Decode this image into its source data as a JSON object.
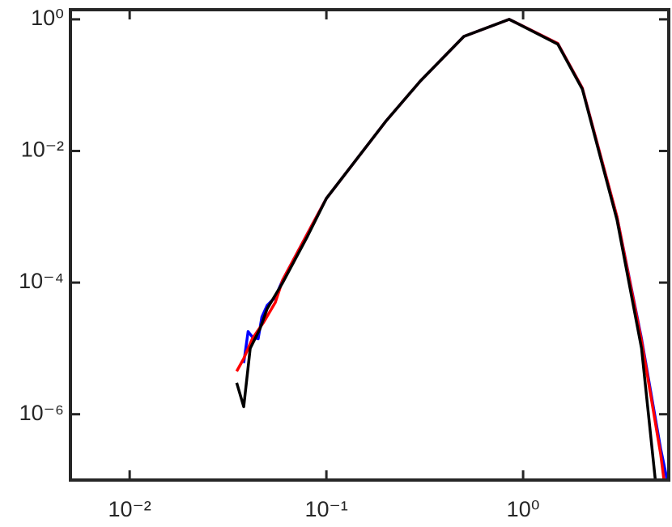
{
  "chart_data": {
    "type": "line",
    "log_x": true,
    "log_y": true,
    "xlim": [
      0.005,
      5.5
    ],
    "ylim": [
      1e-07,
      1.4
    ],
    "xticks": [
      {
        "value": 0.01,
        "label": "10⁻²"
      },
      {
        "value": 0.1,
        "label": "10⁻¹"
      },
      {
        "value": 1,
        "label": "10⁰"
      }
    ],
    "yticks": [
      {
        "value": 1e-06,
        "label": "10⁻⁶"
      },
      {
        "value": 0.0001,
        "label": "10⁻⁴"
      },
      {
        "value": 0.01,
        "label": "10⁻²"
      },
      {
        "value": 1,
        "label": "10⁰"
      }
    ],
    "series": [
      {
        "color": "#0000ff",
        "x": [
          0.038,
          0.04,
          0.042,
          0.045,
          0.047,
          0.05,
          0.055,
          0.06,
          0.08,
          0.1,
          0.2,
          0.3,
          0.5,
          0.85,
          1.5,
          2,
          3,
          4,
          5,
          5.4
        ],
        "values": [
          6e-06,
          1.8e-05,
          1.5e-05,
          1.4e-05,
          3e-05,
          4.5e-05,
          6e-05,
          0.00011,
          0.00055,
          0.0019,
          0.028,
          0.115,
          0.55,
          1.0,
          0.43,
          0.09,
          0.001,
          1.4e-05,
          3e-07,
          1e-07
        ]
      },
      {
        "color": "#ff0000",
        "x": [
          0.035,
          0.038,
          0.042,
          0.048,
          0.055,
          0.06,
          0.08,
          0.1,
          0.2,
          0.3,
          0.5,
          0.85,
          1.5,
          2,
          3,
          4,
          5,
          5.2
        ],
        "values": [
          4.5e-06,
          7e-06,
          1.4e-05,
          2.5e-05,
          5e-05,
          0.00011,
          0.00055,
          0.0019,
          0.028,
          0.115,
          0.55,
          1.0,
          0.43,
          0.09,
          0.001,
          1.3e-05,
          2.5e-07,
          1e-07
        ]
      },
      {
        "color": "#000000",
        "x": [
          0.035,
          0.038,
          0.041,
          0.046,
          0.05,
          0.06,
          0.08,
          0.1,
          0.2,
          0.3,
          0.5,
          0.85,
          1.5,
          2,
          3,
          4,
          4.7
        ],
        "values": [
          3e-06,
          1.3e-06,
          1e-05,
          2e-05,
          4e-05,
          0.0001,
          0.0005,
          0.0019,
          0.028,
          0.115,
          0.55,
          1.0,
          0.42,
          0.087,
          0.0009,
          1e-05,
          1e-07
        ]
      }
    ]
  }
}
